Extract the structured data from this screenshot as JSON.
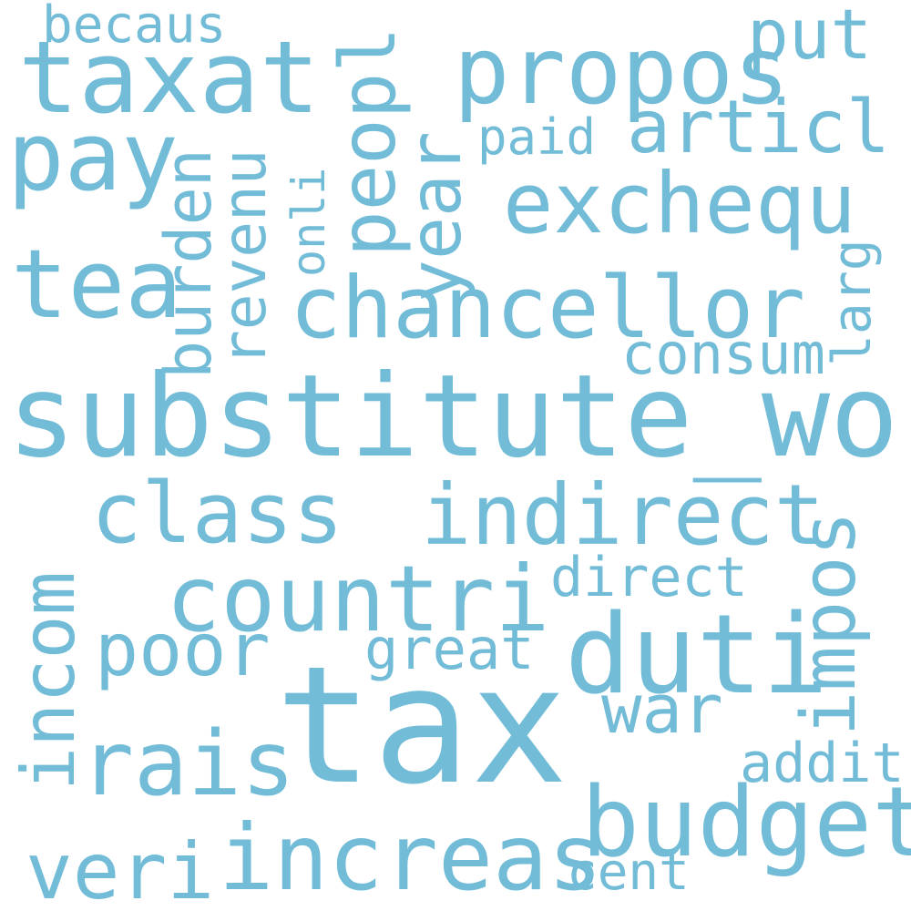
{
  "color": "#72bcd8",
  "words": {
    "tax": "tax",
    "substitute_word": "substitute_word",
    "increas": "increas",
    "duti": "duti",
    "budget": "budget",
    "countri": "countri",
    "chancellor": "chancellor",
    "exchequ": "exchequ",
    "indirect": "indirect",
    "incom": "incom",
    "taxat": "taxat",
    "propos": "propos",
    "class": "class",
    "peopl": "peopl",
    "impos": "impos",
    "rais": "rais",
    "pay": "pay",
    "tea": "tea",
    "veri": "veri",
    "poor": "poor",
    "year": "year",
    "burden": "burden",
    "revenu": "revenu",
    "articl": "articl",
    "war": "war",
    "put": "put",
    "consum": "consum",
    "direct": "direct",
    "great": "great",
    "addit": "addit",
    "cent": "cent",
    "becaus": "becaus",
    "paid": "paid",
    "onli": "onli",
    "larg": "larg"
  }
}
